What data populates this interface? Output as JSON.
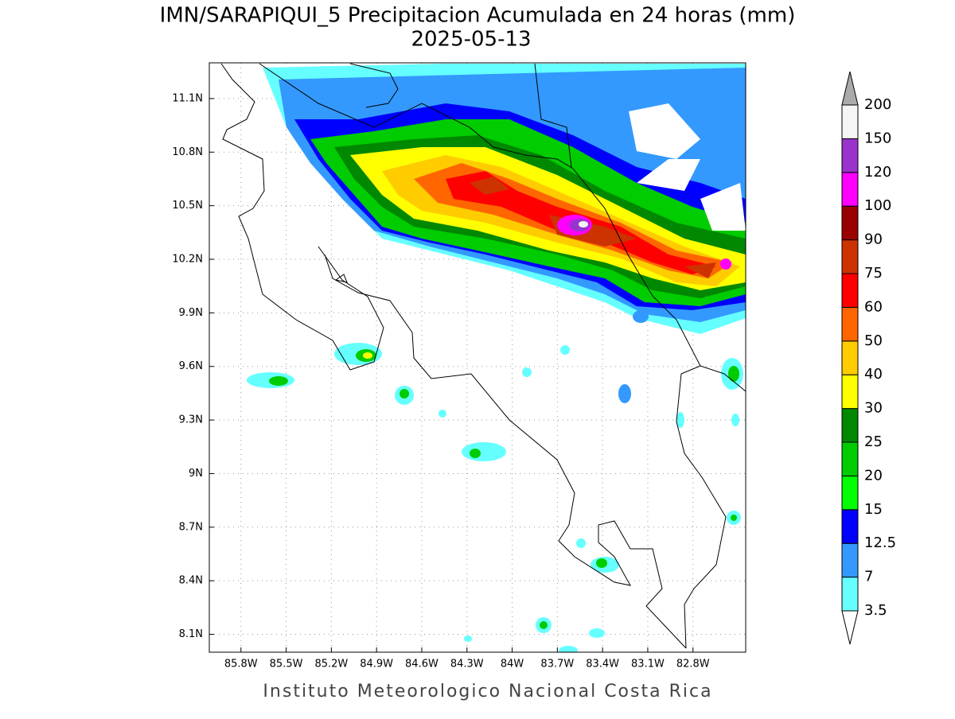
{
  "title": "IMN/SARAPIQUI_5 Precipitacion Acumulada en 24 horas (mm)",
  "date": "2025-05-13",
  "map": {
    "latlim": [
      8.0,
      11.3
    ],
    "lonlim": [
      -86.01,
      -82.45
    ],
    "lat_ticks": [
      {
        "value": 11.1,
        "label": "11.1N"
      },
      {
        "value": 10.8,
        "label": "10.8N"
      },
      {
        "value": 10.5,
        "label": "10.5N"
      },
      {
        "value": 10.2,
        "label": "10.2N"
      },
      {
        "value": 9.9,
        "label": "9.9N"
      },
      {
        "value": 9.6,
        "label": "9.6N"
      },
      {
        "value": 9.3,
        "label": "9.3N"
      },
      {
        "value": 9,
        "label": "9N"
      },
      {
        "value": 8.7,
        "label": "8.7N"
      },
      {
        "value": 8.4,
        "label": "8.4N"
      },
      {
        "value": 8.1,
        "label": "8.1N"
      }
    ],
    "lon_ticks": [
      {
        "value": -85.8,
        "label": "85.8W"
      },
      {
        "value": -85.5,
        "label": "85.5W"
      },
      {
        "value": -85.2,
        "label": "85.2W"
      },
      {
        "value": -84.9,
        "label": "84.9W"
      },
      {
        "value": -84.6,
        "label": "84.6W"
      },
      {
        "value": -84.3,
        "label": "84.3W"
      },
      {
        "value": -84,
        "label": "84W"
      },
      {
        "value": -83.7,
        "label": "83.7W"
      },
      {
        "value": -83.4,
        "label": "83.4W"
      },
      {
        "value": -83.1,
        "label": "83.1W"
      },
      {
        "value": -82.8,
        "label": "82.8W"
      }
    ],
    "grid": true
  },
  "colorbar": {
    "levels": [
      3.5,
      7,
      12.5,
      15,
      20,
      25,
      30,
      40,
      50,
      60,
      75,
      90,
      100,
      120,
      150,
      200
    ],
    "colors": [
      "#66ffff",
      "#3399ff",
      "#0000ff",
      "#00ff00",
      "#00cc00",
      "#008800",
      "#ffff00",
      "#ffcc00",
      "#ff6600",
      "#ff0000",
      "#cc3300",
      "#990000",
      "#ff00ff",
      "#9933cc",
      "#f5f5f5"
    ],
    "under_color": "#ffffff",
    "over_color": "#aaaaaa"
  },
  "credit": "Instituto Meteorologico Nacional Costa Rica"
}
